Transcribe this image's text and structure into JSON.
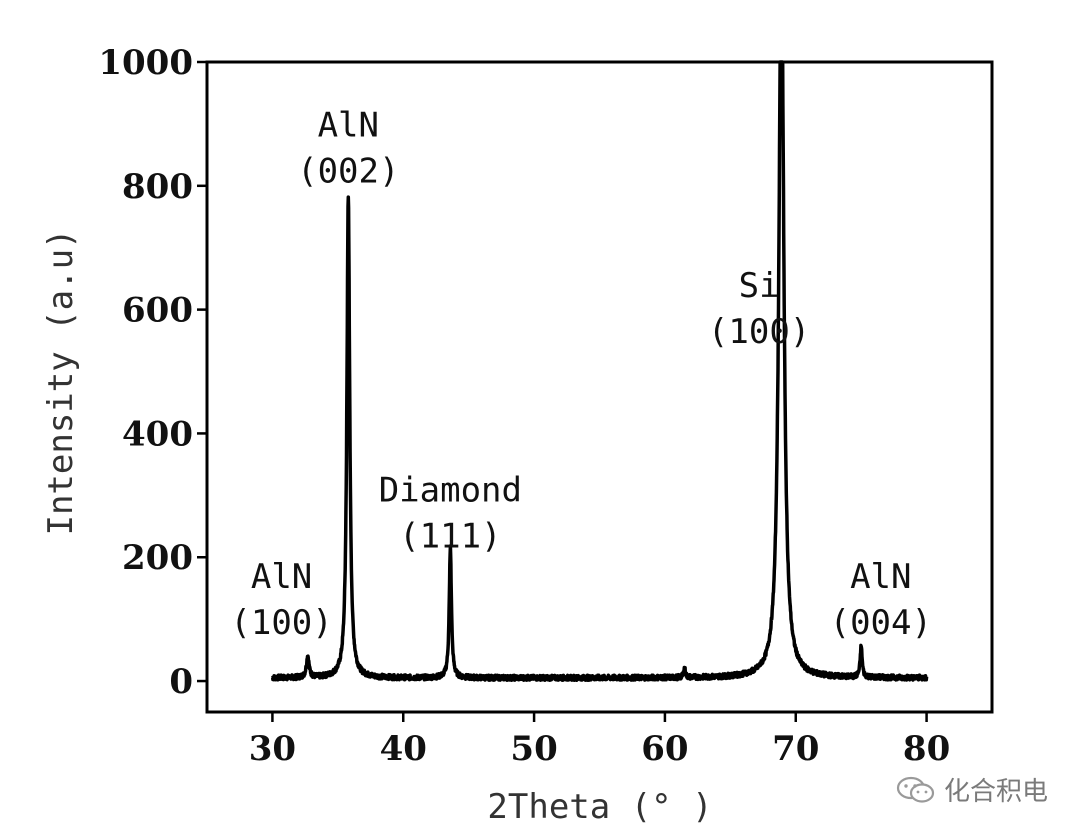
{
  "chart_data": {
    "type": "line",
    "xlabel": "2Theta (° )",
    "ylabel": "Intensity (a.u)",
    "xlim": [
      25,
      85
    ],
    "ylim": [
      -50,
      1000
    ],
    "xticks": [
      30,
      40,
      50,
      60,
      70,
      80
    ],
    "yticks": [
      0,
      200,
      400,
      600,
      800,
      1000
    ],
    "xtick_labels": [
      "30",
      "40",
      "50",
      "60",
      "70",
      "80"
    ],
    "ytick_labels": [
      "0",
      "200",
      "400",
      "600",
      "800",
      "1000"
    ],
    "grid": false,
    "series": [
      {
        "baseline": 5,
        "peaks": [
          {
            "x": 32.7,
            "height": 35
          },
          {
            "x": 35.8,
            "height": 780
          },
          {
            "x": 43.6,
            "height": 210
          },
          {
            "x": 61.5,
            "height": 15
          },
          {
            "x": 68.9,
            "height": 1200
          },
          {
            "x": 75.0,
            "height": 50
          }
        ]
      }
    ],
    "annotations": [
      {
        "text": [
          "AlN",
          "(100)"
        ],
        "x": 30.7,
        "y": 150
      },
      {
        "text": [
          "AlN",
          "(002)"
        ],
        "x": 35.8,
        "y": 880
      },
      {
        "text": [
          "Diamond",
          "(111)"
        ],
        "x": 43.6,
        "y": 290
      },
      {
        "text": [
          "Si",
          "(100)"
        ],
        "x": 67.2,
        "y": 620
      },
      {
        "text": [
          "AlN",
          "(004)"
        ],
        "x": 76.5,
        "y": 150
      }
    ]
  },
  "watermark": {
    "text": "化合积电",
    "icon": "wechat-icon"
  }
}
